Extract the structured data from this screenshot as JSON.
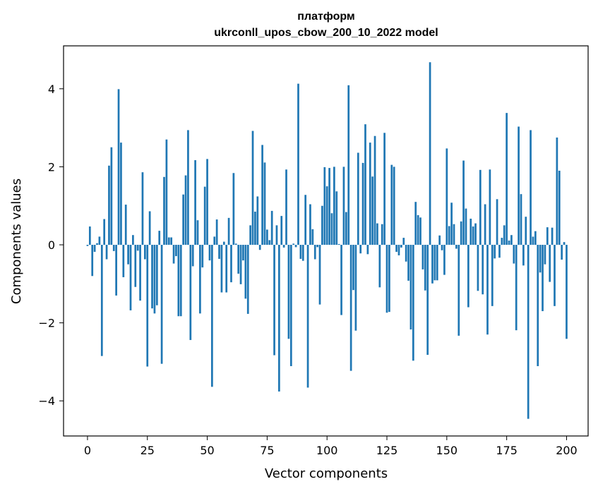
{
  "chart_data": {
    "type": "bar",
    "title": "платформ",
    "subtitle": "ukrconll_upos_cbow_200_10_2022 model",
    "xlabel": "Vector components",
    "ylabel": "Components values",
    "xlim": [
      -10,
      209
    ],
    "ylim": [
      -4.9,
      5.1
    ],
    "xticks": [
      0,
      25,
      50,
      75,
      100,
      125,
      150,
      175,
      200
    ],
    "yticks": [
      -4,
      -2,
      0,
      2,
      4
    ],
    "ytick_labels": [
      "−4",
      "−2",
      "0",
      "2",
      "4"
    ],
    "grid": false,
    "bar_color": "#1f77b4",
    "values": [
      -0.03,
      0.47,
      -0.8,
      -0.18,
      0.04,
      0.21,
      -2.85,
      0.66,
      -0.37,
      2.03,
      2.5,
      -0.16,
      -1.3,
      3.99,
      2.62,
      -0.83,
      1.03,
      -0.5,
      -1.68,
      0.25,
      -1.08,
      -0.15,
      -1.43,
      1.86,
      -0.37,
      -3.12,
      0.86,
      -1.63,
      -1.76,
      -1.55,
      0.36,
      -3.05,
      1.74,
      2.7,
      0.19,
      0.19,
      -0.48,
      -0.29,
      -1.83,
      -1.83,
      1.29,
      1.78,
      2.94,
      -2.44,
      -0.55,
      2.17,
      0.63,
      -1.76,
      -0.58,
      1.49,
      2.2,
      -0.4,
      -3.64,
      0.21,
      0.65,
      -0.36,
      -1.22,
      0.08,
      -1.22,
      0.69,
      -0.96,
      1.84,
      0.03,
      -0.74,
      -1.01,
      -0.4,
      -1.38,
      -1.77,
      0.5,
      2.92,
      0.85,
      1.24,
      -0.13,
      2.56,
      2.11,
      0.39,
      0.12,
      0.87,
      -2.83,
      0.5,
      -3.76,
      0.74,
      -0.07,
      1.93,
      -2.41,
      -3.11,
      0.03,
      -0.06,
      4.13,
      -0.36,
      -0.41,
      1.28,
      -3.66,
      1.04,
      0.4,
      -0.37,
      -0.06,
      -1.53,
      1.0,
      1.99,
      1.5,
      1.97,
      0.81,
      2.0,
      1.37,
      0.02,
      -1.8,
      2.0,
      0.84,
      4.09,
      -3.23,
      -1.16,
      -2.2,
      2.36,
      -0.22,
      2.1,
      3.09,
      -0.24,
      2.62,
      1.75,
      2.79,
      0.55,
      -1.09,
      0.53,
      2.87,
      -1.74,
      -1.72,
      2.05,
      2.0,
      -0.18,
      -0.27,
      -0.07,
      0.18,
      -0.43,
      -0.92,
      -2.17,
      -2.97,
      1.1,
      0.76,
      0.7,
      -0.63,
      -1.17,
      -2.82,
      4.68,
      -0.99,
      -0.91,
      -0.91,
      0.24,
      -0.14,
      -0.77,
      2.47,
      0.48,
      1.08,
      0.53,
      -0.1,
      -2.33,
      0.6,
      2.16,
      0.93,
      -1.6,
      0.67,
      0.47,
      0.55,
      -1.18,
      1.92,
      -1.27,
      1.04,
      -2.3,
      1.93,
      -1.57,
      -0.35,
      1.17,
      -0.33,
      0.18,
      0.5,
      3.38,
      0.11,
      0.25,
      -0.48,
      -2.19,
      3.03,
      1.3,
      -0.53,
      0.72,
      -4.46,
      2.94,
      0.21,
      0.35,
      -3.11,
      -0.71,
      -1.7,
      -0.5,
      0.45,
      -0.95,
      0.44,
      -1.57,
      2.75,
      1.9,
      -0.38,
      0.07,
      -2.41
    ]
  }
}
